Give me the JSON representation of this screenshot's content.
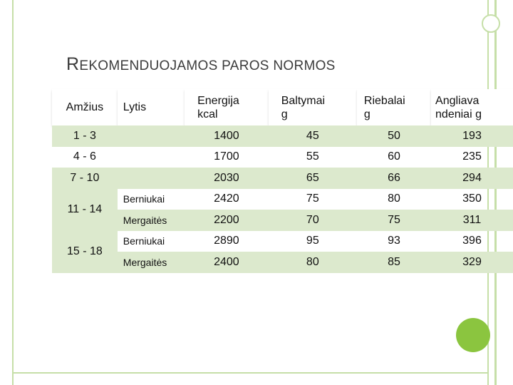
{
  "title": "REKOMENDUOJAMOS PAROS NORMOS",
  "title_first_letter": "R",
  "title_rest": "EKOMENDUOJAMOS PAROS NORMOS",
  "table": {
    "headers": {
      "age": "Amžius",
      "sex": "Lytis",
      "energy_l1": "Energija",
      "energy_l2": "kcal",
      "protein_l1": "Baltymai",
      "protein_l2": "g",
      "fat_l1": "Riebalai",
      "fat_l2": "g",
      "carbs_l1": "Angliava",
      "carbs_l2": "ndeniai g"
    },
    "rows": [
      {
        "age": "1 - 3",
        "sex": "",
        "energy": "1400",
        "protein": "45",
        "fat": "50",
        "carbs": "193"
      },
      {
        "age": "4 - 6",
        "sex": "",
        "energy": "1700",
        "protein": "55",
        "fat": "60",
        "carbs": "235"
      },
      {
        "age": "7 - 10",
        "sex": "",
        "energy": "2030",
        "protein": "65",
        "fat": "66",
        "carbs": "294"
      },
      {
        "age": "11 - 14",
        "sex": "Berniukai",
        "energy": "2420",
        "protein": "75",
        "fat": "80",
        "carbs": "350"
      },
      {
        "age": "",
        "sex": "Mergaitės",
        "energy": "2200",
        "protein": "70",
        "fat": "75",
        "carbs": "311"
      },
      {
        "age": "15 - 18",
        "sex": "Berniukai",
        "energy": "2890",
        "protein": "95",
        "fat": "93",
        "carbs": "396"
      },
      {
        "age": "",
        "sex": "Mergaitės",
        "energy": "2400",
        "protein": "80",
        "fat": "85",
        "carbs": "329"
      }
    ]
  },
  "colors": {
    "accent_green": "#8bc53f",
    "deco_line": "#c6dfa8",
    "band_fill": "#dce9cd"
  }
}
